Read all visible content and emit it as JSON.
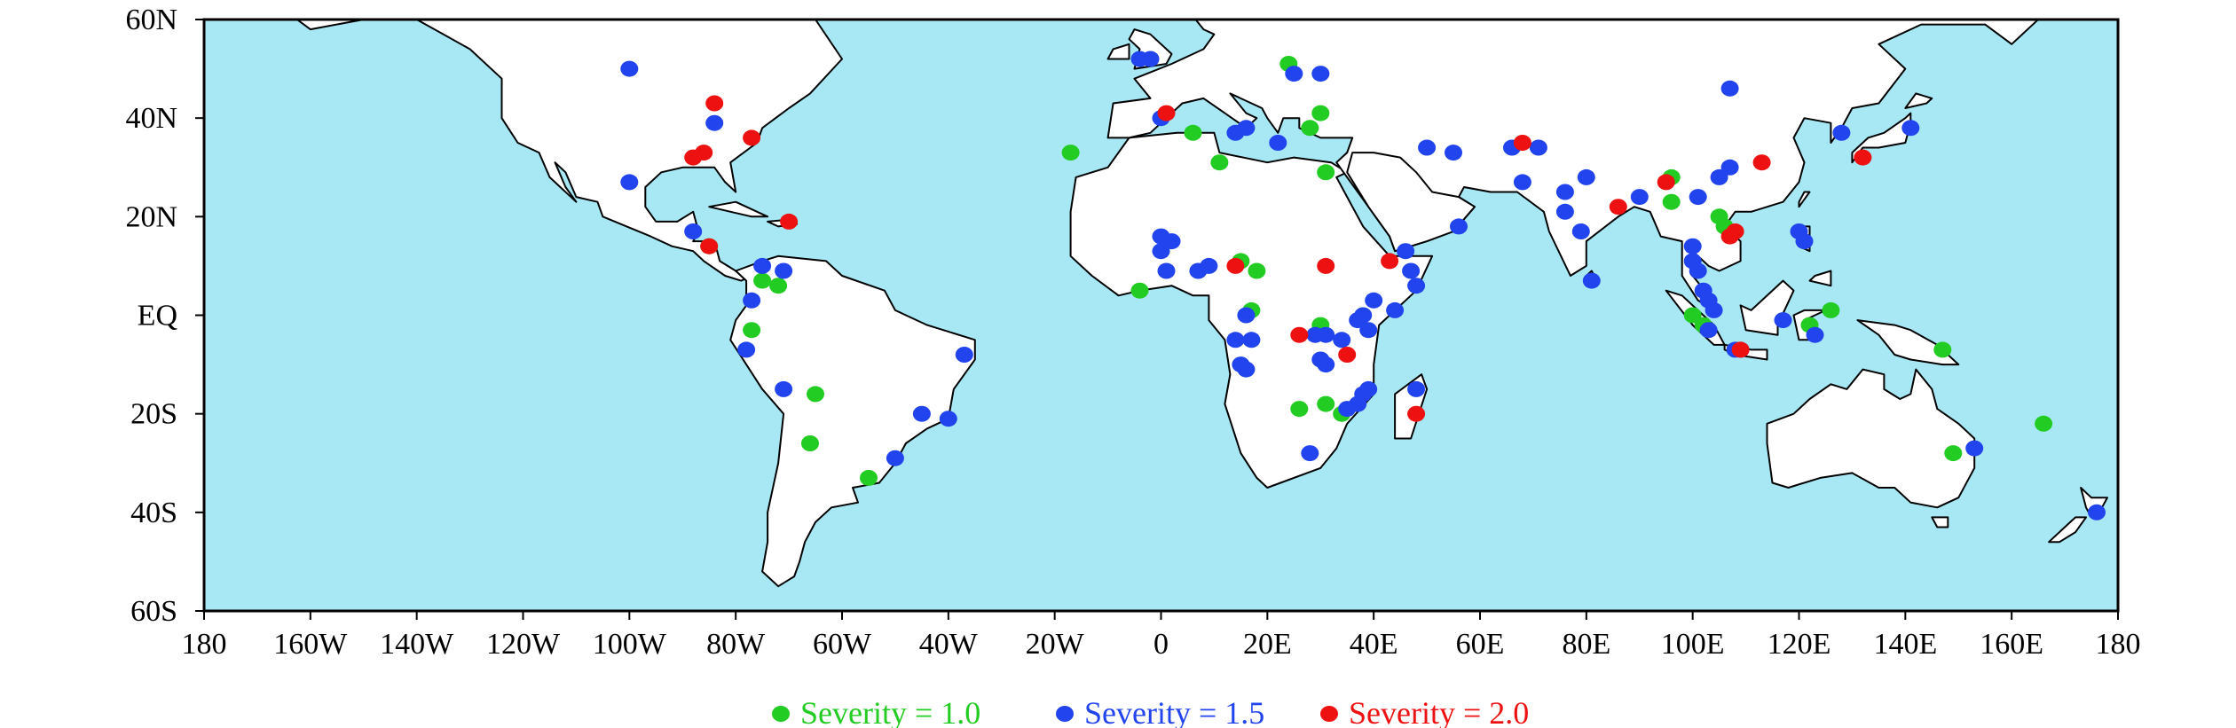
{
  "chart_data": {
    "type": "scatter",
    "projection": "equirectangular",
    "xlim": [
      -180,
      180
    ],
    "ylim": [
      -60,
      60
    ],
    "x_ticks": [
      {
        "value": -180,
        "label": "180"
      },
      {
        "value": -160,
        "label": "160W"
      },
      {
        "value": -140,
        "label": "140W"
      },
      {
        "value": -120,
        "label": "120W"
      },
      {
        "value": -100,
        "label": "100W"
      },
      {
        "value": -80,
        "label": "80W"
      },
      {
        "value": -60,
        "label": "60W"
      },
      {
        "value": -40,
        "label": "40W"
      },
      {
        "value": -20,
        "label": "20W"
      },
      {
        "value": 0,
        "label": "0"
      },
      {
        "value": 20,
        "label": "20E"
      },
      {
        "value": 40,
        "label": "40E"
      },
      {
        "value": 60,
        "label": "60E"
      },
      {
        "value": 80,
        "label": "80E"
      },
      {
        "value": 100,
        "label": "100E"
      },
      {
        "value": 120,
        "label": "120E"
      },
      {
        "value": 140,
        "label": "140E"
      },
      {
        "value": 160,
        "label": "160E"
      },
      {
        "value": 180,
        "label": "180"
      }
    ],
    "y_ticks": [
      {
        "value": 60,
        "label": "60N"
      },
      {
        "value": 40,
        "label": "40N"
      },
      {
        "value": 20,
        "label": "20N"
      },
      {
        "value": 0,
        "label": "EQ"
      },
      {
        "value": -20,
        "label": "20S"
      },
      {
        "value": -40,
        "label": "40S"
      },
      {
        "value": -60,
        "label": "60S"
      }
    ],
    "ocean_color": "#a8e8f5",
    "land_color": "#ffffff",
    "legend_position": "bottom-center",
    "series": [
      {
        "name": "Severity = 1.0",
        "color": "#22cc22",
        "points": [
          [
            -85,
            14
          ],
          [
            -75,
            7
          ],
          [
            -72,
            6
          ],
          [
            -77,
            -3
          ],
          [
            -65,
            -16
          ],
          [
            -66,
            -26
          ],
          [
            -55,
            -33
          ],
          [
            -17,
            33
          ],
          [
            -4,
            5
          ],
          [
            6,
            37
          ],
          [
            11,
            31
          ],
          [
            15,
            11
          ],
          [
            18,
            9
          ],
          [
            17,
            1
          ],
          [
            30,
            -2
          ],
          [
            26,
            -19
          ],
          [
            31,
            -18
          ],
          [
            34,
            -20
          ],
          [
            24,
            51
          ],
          [
            30,
            41
          ],
          [
            28,
            38
          ],
          [
            31,
            29
          ],
          [
            96,
            28
          ],
          [
            96,
            23
          ],
          [
            105,
            20
          ],
          [
            106,
            18
          ],
          [
            100,
            0
          ],
          [
            102,
            -2
          ],
          [
            122,
            -2
          ],
          [
            126,
            1
          ],
          [
            147,
            -7
          ],
          [
            149,
            -28
          ],
          [
            166,
            -22
          ]
        ]
      },
      {
        "name": "Severity = 1.5",
        "color": "#2244ee",
        "points": [
          [
            -100,
            50
          ],
          [
            -84,
            39
          ],
          [
            -100,
            27
          ],
          [
            -88,
            17
          ],
          [
            -75,
            10
          ],
          [
            -71,
            9
          ],
          [
            -77,
            3
          ],
          [
            -78,
            -7
          ],
          [
            -71,
            -15
          ],
          [
            -45,
            -20
          ],
          [
            -40,
            -21
          ],
          [
            -37,
            -8
          ],
          [
            -50,
            -29
          ],
          [
            -4,
            52
          ],
          [
            -2,
            52
          ],
          [
            0,
            40
          ],
          [
            14,
            37
          ],
          [
            16,
            38
          ],
          [
            25,
            49
          ],
          [
            30,
            49
          ],
          [
            22,
            35
          ],
          [
            0,
            16
          ],
          [
            2,
            15
          ],
          [
            0,
            13
          ],
          [
            7,
            9
          ],
          [
            9,
            10
          ],
          [
            1,
            9
          ],
          [
            16,
            0
          ],
          [
            14,
            -5
          ],
          [
            17,
            -5
          ],
          [
            15,
            -10
          ],
          [
            16,
            -11
          ],
          [
            29,
            -4
          ],
          [
            31,
            -4
          ],
          [
            30,
            -9
          ],
          [
            31,
            -10
          ],
          [
            34,
            -5
          ],
          [
            37,
            -1
          ],
          [
            38,
            0
          ],
          [
            39,
            -3
          ],
          [
            40,
            3
          ],
          [
            44,
            1
          ],
          [
            46,
            13
          ],
          [
            47,
            9
          ],
          [
            48,
            6
          ],
          [
            39,
            -15
          ],
          [
            38,
            -16
          ],
          [
            37,
            -18
          ],
          [
            35,
            -19
          ],
          [
            28,
            -28
          ],
          [
            48,
            -15
          ],
          [
            50,
            34
          ],
          [
            55,
            33
          ],
          [
            66,
            34
          ],
          [
            71,
            34
          ],
          [
            68,
            27
          ],
          [
            76,
            25
          ],
          [
            80,
            28
          ],
          [
            76,
            21
          ],
          [
            79,
            17
          ],
          [
            81,
            7
          ],
          [
            90,
            24
          ],
          [
            101,
            24
          ],
          [
            105,
            28
          ],
          [
            107,
            30
          ],
          [
            100,
            14
          ],
          [
            100,
            11
          ],
          [
            101,
            9
          ],
          [
            102,
            5
          ],
          [
            103,
            3
          ],
          [
            104,
            1
          ],
          [
            103,
            -3
          ],
          [
            109,
            -7
          ],
          [
            117,
            -1
          ],
          [
            120,
            17
          ],
          [
            121,
            15
          ],
          [
            123,
            -4
          ],
          [
            128,
            37
          ],
          [
            141,
            38
          ],
          [
            107,
            46
          ],
          [
            56,
            18
          ],
          [
            153,
            -27
          ],
          [
            176,
            -40
          ],
          [
            108,
            -7
          ]
        ]
      },
      {
        "name": "Severity = 2.0",
        "color": "#ee1111",
        "points": [
          [
            -84,
            43
          ],
          [
            -77,
            36
          ],
          [
            -88,
            32
          ],
          [
            -86,
            33
          ],
          [
            -70,
            19
          ],
          [
            -85,
            14
          ],
          [
            1,
            41
          ],
          [
            14,
            10
          ],
          [
            31,
            10
          ],
          [
            26,
            -4
          ],
          [
            35,
            -8
          ],
          [
            43,
            11
          ],
          [
            48,
            -20
          ],
          [
            68,
            35
          ],
          [
            86,
            22
          ],
          [
            95,
            27
          ],
          [
            108,
            17
          ],
          [
            107,
            16
          ],
          [
            113,
            31
          ],
          [
            132,
            32
          ],
          [
            109,
            -7
          ]
        ]
      }
    ]
  }
}
